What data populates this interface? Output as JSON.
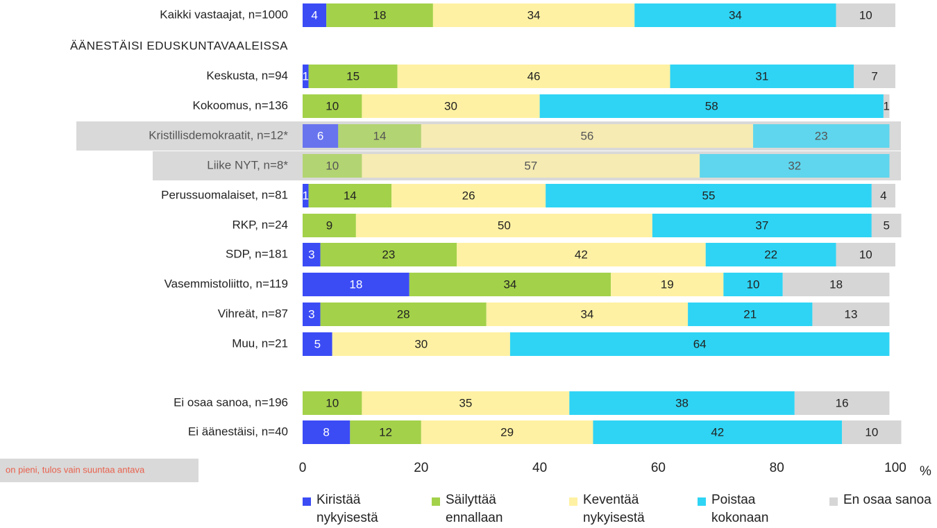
{
  "chart_data": {
    "type": "stacked_bar_horizontal",
    "group_label": "ÄÄNESTÄISI EDUSKUNTAVAALEISSA",
    "categories": [
      "Kaikki vastaajat, n=1000",
      "Keskusta, n=94",
      "Kokoomus, n=136",
      "Kristillisdemokraatit, n=12*",
      "Liike NYT, n=8*",
      "Perussuomalaiset, n=81",
      "RKP, n=24",
      "SDP, n=181",
      "Vasemmistoliitto, n=119",
      "Vihreät, n=87",
      "Muu, n=21",
      "Ei osaa sanoa, n=196",
      "Ei äänestäisi, n=40"
    ],
    "series": [
      {
        "name": "Kiristää nykyisestä",
        "color": "#3b4cf5",
        "values": [
          4,
          1,
          null,
          6,
          null,
          1,
          null,
          3,
          18,
          3,
          5,
          null,
          8
        ]
      },
      {
        "name": "Säilyttää ennallaan",
        "color": "#a3d14a",
        "values": [
          18,
          15,
          10,
          14,
          10,
          14,
          9,
          23,
          34,
          28,
          null,
          10,
          12
        ]
      },
      {
        "name": "Keventää nykyisestä",
        "color": "#fff1a3",
        "values": [
          34,
          46,
          30,
          56,
          57,
          26,
          50,
          42,
          19,
          34,
          30,
          35,
          29
        ]
      },
      {
        "name": "Poistaa kokonaan",
        "color": "#2fd4f4",
        "values": [
          34,
          31,
          58,
          23,
          32,
          55,
          37,
          22,
          10,
          21,
          64,
          38,
          42
        ]
      },
      {
        "name": "En osaa sanoa",
        "color": "#d6d6d6",
        "values": [
          10,
          7,
          1,
          null,
          null,
          4,
          5,
          10,
          18,
          13,
          null,
          16,
          10
        ]
      }
    ],
    "highlighted": [
      3,
      4
    ],
    "xlim": [
      0,
      100
    ],
    "xticks": [
      0,
      20,
      40,
      60,
      80,
      100
    ],
    "x_unit": "%",
    "footnote": "on pieni, tulos vain suuntaa antava"
  }
}
